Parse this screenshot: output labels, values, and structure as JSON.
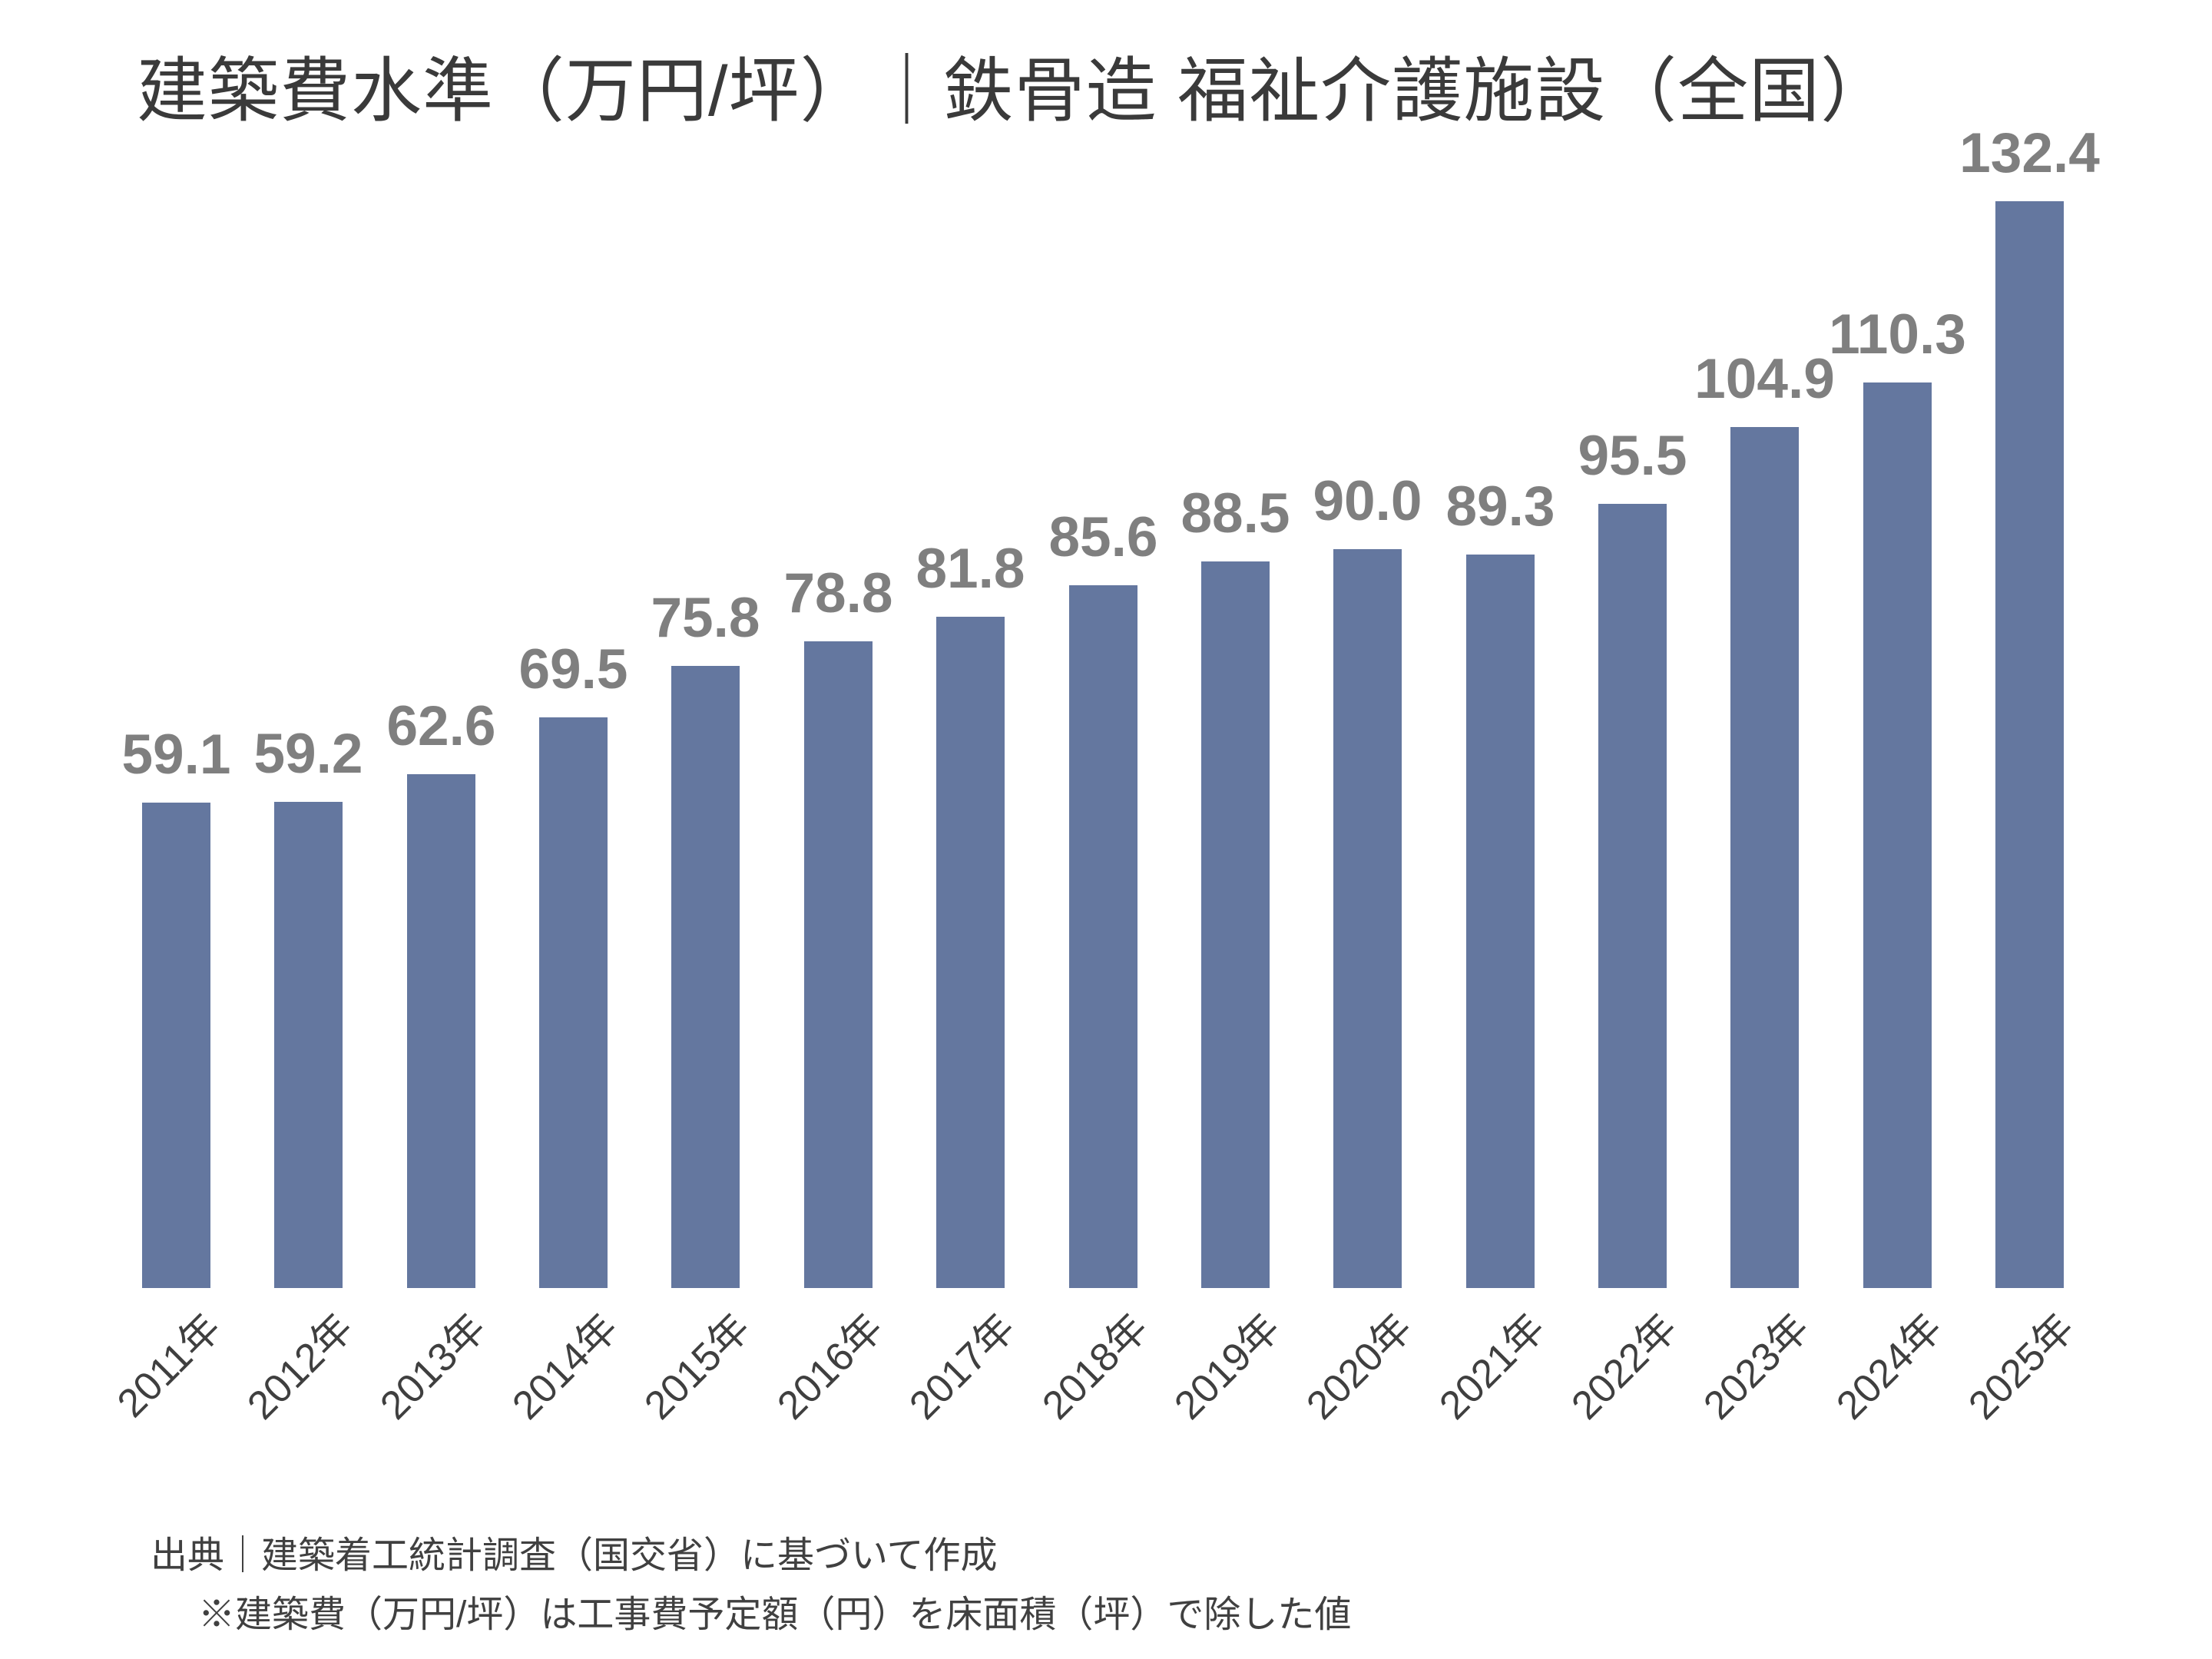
{
  "title": "建築費水準（万円/坪）｜鉄骨造 福祉介護施設（全国）",
  "chart_data": {
    "type": "bar",
    "title": "建築費水準（万円/坪）｜鉄骨造 福祉介護施設（全国）",
    "categories": [
      "2011年",
      "2012年",
      "2013年",
      "2014年",
      "2015年",
      "2016年",
      "2017年",
      "2018年",
      "2019年",
      "2020年",
      "2021年",
      "2022年",
      "2023年",
      "2024年",
      "2025年"
    ],
    "values": [
      59.1,
      59.2,
      62.6,
      69.5,
      75.8,
      78.8,
      81.8,
      85.6,
      88.5,
      90.0,
      89.3,
      95.5,
      104.9,
      110.3,
      132.4
    ],
    "data_labels": [
      "59.1",
      "59.2",
      "62.6",
      "69.5",
      "75.8",
      "78.8",
      "81.8",
      "85.6",
      "88.5",
      "90.0",
      "89.3",
      "95.5",
      "104.9",
      "110.3",
      "132.4"
    ],
    "xlabel": "",
    "ylabel": "",
    "ylim": [
      0,
      140
    ],
    "grid": false,
    "legend": "none",
    "bar_color": "#64779F",
    "value_label_color": "#7F7F7F"
  },
  "footer": {
    "source": "出典｜建築着工統計調査（国交省）に基づいて作成",
    "note": "※建築費（万円/坪）は工事費予定額（円）を床面積（坪）で除した値"
  }
}
